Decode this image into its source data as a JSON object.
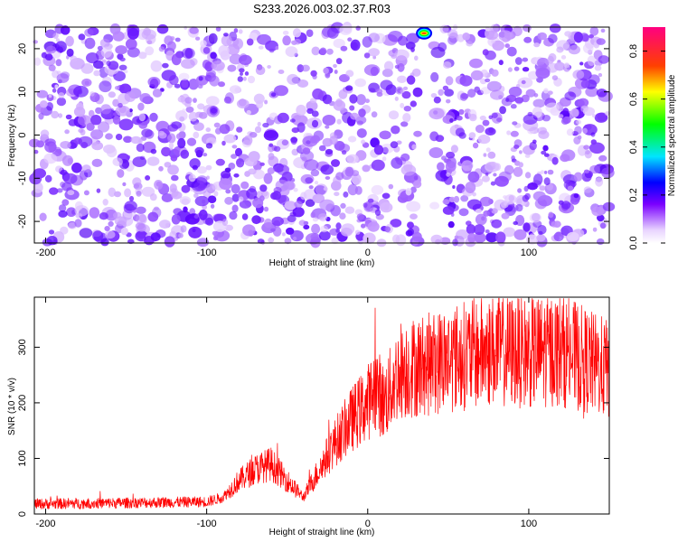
{
  "title": "S233.2026.003.02.37.R03",
  "chart_data": [
    {
      "type": "heatmap",
      "xlabel": "Height of straight line (km)",
      "ylabel": "Frequency (Hz)",
      "xlim": [
        -207,
        150
      ],
      "ylim": [
        -25,
        25
      ],
      "x_ticks": [
        -200,
        -100,
        0,
        100
      ],
      "y_ticks": [
        -20,
        -10,
        0,
        10,
        20
      ],
      "colorbar": {
        "label": "Normalized spectral amplitude",
        "range": [
          0,
          0.9
        ],
        "ticks": [
          0.0,
          0.2,
          0.4,
          0.6,
          0.8
        ],
        "colors": [
          "#ffffff",
          "#6a00ff",
          "#0000ff",
          "#00ffff",
          "#00ff00",
          "#ffff00",
          "#ff0000",
          "#ff00ff"
        ]
      },
      "background_amplitude_range": [
        0.02,
        0.18
      ],
      "peak": {
        "x": 35,
        "y": 24,
        "value": 0.9
      },
      "gap_x": [
        31,
        41
      ],
      "grid": false
    },
    {
      "type": "line",
      "xlabel": "Height of straight line (km)",
      "ylabel": "SNR (10 * v/v)",
      "xlim": [
        -207,
        150
      ],
      "ylim": [
        0,
        390
      ],
      "x_ticks": [
        -200,
        -100,
        0,
        100
      ],
      "y_ticks": [
        0,
        100,
        200,
        300
      ],
      "color": "#ff0000",
      "series_shape": [
        [
          -207,
          18
        ],
        [
          -150,
          20
        ],
        [
          -100,
          22
        ],
        [
          -90,
          30
        ],
        [
          -80,
          60
        ],
        [
          -70,
          80
        ],
        [
          -60,
          90
        ],
        [
          -50,
          60
        ],
        [
          -40,
          30
        ],
        [
          -30,
          80
        ],
        [
          -20,
          130
        ],
        [
          -10,
          170
        ],
        [
          0,
          200
        ],
        [
          5,
          230
        ],
        [
          10,
          200
        ],
        [
          15,
          230
        ],
        [
          20,
          260
        ],
        [
          30,
          265
        ],
        [
          40,
          270
        ],
        [
          50,
          280
        ],
        [
          60,
          285
        ],
        [
          70,
          290
        ],
        [
          80,
          295
        ],
        [
          100,
          290
        ],
        [
          120,
          295
        ],
        [
          140,
          270
        ],
        [
          150,
          260
        ]
      ],
      "grid": false
    }
  ]
}
